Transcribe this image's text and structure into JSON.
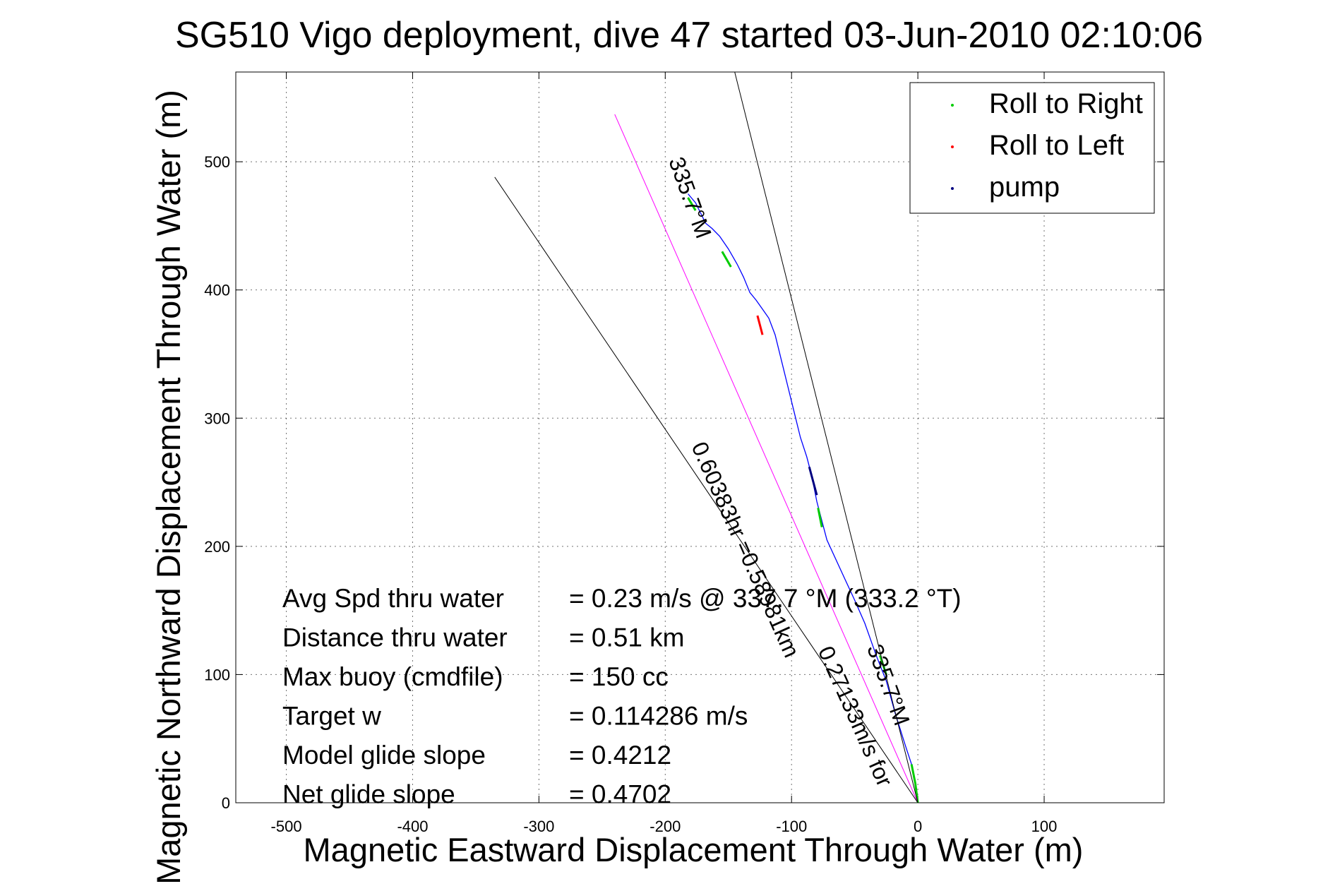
{
  "chart_data": {
    "type": "line",
    "title": "SG510 Vigo deployment, dive 47 started 03-Jun-2010 02:10:06",
    "xlabel": "Magnetic Eastward Displacement Through Water (m)",
    "ylabel": "Magnetic Northward Displacement Through Water (m)",
    "xlim": [
      -540,
      195
    ],
    "ylim": [
      0,
      570
    ],
    "xticks": [
      -500,
      -400,
      -300,
      -200,
      -100,
      0,
      100
    ],
    "yticks": [
      0,
      100,
      200,
      300,
      400,
      500
    ],
    "grid": true,
    "legend_position": "top-right",
    "legend": [
      {
        "label": "Roll to Right",
        "color": "#00cc00"
      },
      {
        "label": "Roll to Left",
        "color": "#ff0000"
      },
      {
        "label": "pump",
        "color": "#000080"
      }
    ],
    "series": [
      {
        "name": "track",
        "color": "#0000ff",
        "x": [
          0,
          -2,
          -5,
          -10,
          -18,
          -25,
          -33,
          -42,
          -50,
          -58,
          -65,
          -72,
          -76,
          -80,
          -84,
          -88,
          -93,
          -98,
          -103,
          -108,
          -113,
          -118,
          -123,
          -128,
          -133,
          -138,
          -143,
          -150,
          -157,
          -163,
          -168,
          -172,
          -176,
          -182
        ],
        "y": [
          0,
          15,
          30,
          45,
          70,
          95,
          115,
          140,
          158,
          175,
          190,
          205,
          220,
          235,
          255,
          270,
          285,
          305,
          325,
          345,
          365,
          378,
          385,
          392,
          398,
          410,
          420,
          432,
          442,
          448,
          452,
          460,
          468,
          475
        ]
      },
      {
        "name": "roll_right_segments",
        "color": "#00cc00",
        "segments": [
          {
            "x": [
              0,
              -2,
              -5
            ],
            "y": [
              0,
              15,
              30
            ]
          },
          {
            "x": [
              -25,
              -30
            ],
            "y": [
              100,
              115
            ]
          },
          {
            "x": [
              -76,
              -79
            ],
            "y": [
              215,
              230
            ]
          },
          {
            "x": [
              -148,
              -155
            ],
            "y": [
              418,
              430
            ]
          },
          {
            "x": [
              -176,
              -182
            ],
            "y": [
              462,
              472
            ]
          }
        ]
      },
      {
        "name": "roll_left_segments",
        "color": "#ff0000",
        "segments": [
          {
            "x": [
              -123,
              -127
            ],
            "y": [
              365,
              380
            ]
          }
        ]
      },
      {
        "name": "pump_segments",
        "color": "#000080",
        "segments": [
          {
            "x": [
              -80,
              -86
            ],
            "y": [
              240,
              262
            ]
          }
        ]
      },
      {
        "name": "heading_line",
        "color": "#ff00ff",
        "x": [
          0,
          -240
        ],
        "y": [
          0,
          537
        ]
      },
      {
        "name": "envelope_1",
        "color": "#000000",
        "x": [
          0,
          -335
        ],
        "y": [
          0,
          488
        ]
      },
      {
        "name": "envelope_2",
        "color": "#000000",
        "x": [
          0,
          -145
        ],
        "y": [
          0,
          570
        ]
      }
    ],
    "annotations": [
      {
        "text": "335.7°M",
        "x": -186,
        "y": 470,
        "angle": 70
      },
      {
        "text": "0.60383hr =0.58981km",
        "x": -142,
        "y": 195,
        "angle": 66
      },
      {
        "text": "0.27133m/s for",
        "x": -55,
        "y": 65,
        "angle": 66
      },
      {
        "text": "335.7°M",
        "x": -29,
        "y": 90,
        "angle": 70
      }
    ],
    "info_box": [
      {
        "label": "Avg Spd thru water",
        "value": "=  0.23 m/s @ 337.7 °M (333.2 °T)"
      },
      {
        "label": "Distance thru water",
        "value": "=  0.51 km"
      },
      {
        "label": "Max buoy (cmdfile)",
        "value": "= 150 cc"
      },
      {
        "label": "Target w",
        "value": "= 0.114286 m/s"
      },
      {
        "label": "Model glide slope",
        "value": "= 0.4212"
      },
      {
        "label": "Net glide slope",
        "value": "= 0.4702"
      }
    ]
  }
}
